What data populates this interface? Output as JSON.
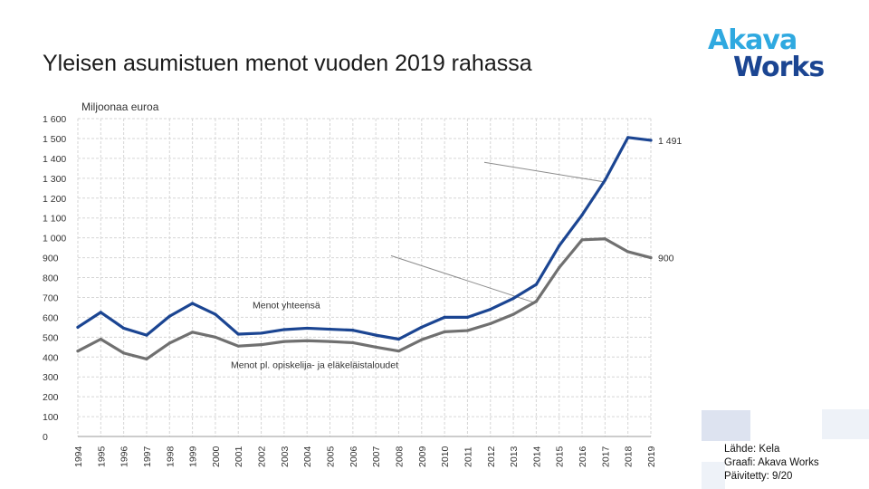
{
  "page": {
    "title": "Yleisen asumistuen menot vuoden 2019 rahassa"
  },
  "logo": {
    "line1": "Akava",
    "line2": "Works"
  },
  "source": {
    "line1": "Lähde: Kela",
    "line2": "Graafi: Akava Works",
    "line3": "Päivitetty: 9/20"
  },
  "colors": {
    "total": "#1b4592",
    "excl": "#707070",
    "grid": "#d6d6d6",
    "deco1": "#dde3f0",
    "deco2": "#eef2f8"
  },
  "chart_data": {
    "type": "line",
    "title": "",
    "ylabel": "Miljoonaa euroa",
    "xlabel": "",
    "ylim": [
      0,
      1600
    ],
    "yticks": [
      0,
      100,
      200,
      300,
      400,
      500,
      600,
      700,
      800,
      900,
      1000,
      1100,
      1200,
      1300,
      1400,
      1500,
      1600
    ],
    "ytick_labels": [
      "0",
      "100",
      "200",
      "300",
      "400",
      "500",
      "600",
      "700",
      "800",
      "900",
      "1 000",
      "1 100",
      "1 200",
      "1 300",
      "1 400",
      "1 500",
      "1 600"
    ],
    "grid": true,
    "categories": [
      "1994",
      "1995",
      "1996",
      "1997",
      "1998",
      "1999",
      "2000",
      "2001",
      "2002",
      "2003",
      "2004",
      "2005",
      "2006",
      "2007",
      "2008",
      "2009",
      "2010",
      "2011",
      "2012",
      "2013",
      "2014",
      "2015",
      "2016",
      "2017",
      "2018",
      "2019"
    ],
    "series": [
      {
        "name": "Menot yhteensä",
        "key": "total",
        "values": [
          550,
          625,
          545,
          510,
          605,
          670,
          615,
          515,
          520,
          538,
          545,
          540,
          535,
          510,
          490,
          550,
          600,
          600,
          640,
          695,
          765,
          960,
          1115,
          1290,
          1505,
          1491
        ],
        "end_label": "1 491"
      },
      {
        "name": "Menot pl. opiskelija- ja eläkeläistaloudet",
        "key": "excl",
        "values": [
          430,
          490,
          420,
          390,
          470,
          525,
          500,
          455,
          462,
          478,
          482,
          478,
          472,
          450,
          430,
          487,
          527,
          533,
          568,
          615,
          680,
          850,
          990,
          995,
          930,
          900
        ],
        "end_label": "900"
      }
    ],
    "annotations": [
      {
        "text": "Menot yhteensä",
        "series": "total",
        "at_category": "2017"
      },
      {
        "text": "Menot pl. opiskelija- ja eläkeläistaloudet",
        "series": "excl",
        "at_category": "2014"
      }
    ]
  }
}
